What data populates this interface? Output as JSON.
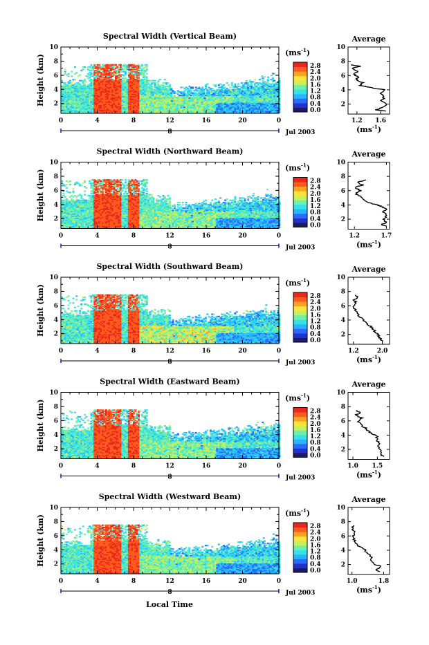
{
  "panels": [
    {
      "title": "Spectral Width (Vertical Beam)",
      "avg": {
        "xticks": [
          "1.2",
          "1.6"
        ],
        "xmin": 1.05,
        "xmax": 1.75,
        "profile": [
          [
            1.7,
            1.0
          ],
          [
            1.52,
            1.2
          ],
          [
            1.62,
            1.5
          ],
          [
            1.7,
            2.0
          ],
          [
            1.62,
            2.5
          ],
          [
            1.66,
            3.0
          ],
          [
            1.6,
            3.5
          ],
          [
            1.68,
            4.0
          ],
          [
            1.5,
            4.2
          ],
          [
            1.4,
            4.4
          ],
          [
            1.25,
            4.6
          ],
          [
            1.3,
            5.0
          ],
          [
            1.18,
            5.4
          ],
          [
            1.22,
            5.8
          ],
          [
            1.15,
            6.2
          ],
          [
            1.22,
            6.6
          ],
          [
            1.12,
            7.0
          ],
          [
            1.25,
            7.3
          ],
          [
            1.1,
            7.5
          ]
        ]
      }
    },
    {
      "title": "Spectral Width (Northward Beam)",
      "avg": {
        "xticks": [
          "1.2",
          "1.7"
        ],
        "xmin": 1.1,
        "xmax": 1.75,
        "profile": [
          [
            1.72,
            1.0
          ],
          [
            1.62,
            1.2
          ],
          [
            1.7,
            1.6
          ],
          [
            1.64,
            2.0
          ],
          [
            1.72,
            2.5
          ],
          [
            1.66,
            3.0
          ],
          [
            1.7,
            3.5
          ],
          [
            1.62,
            3.8
          ],
          [
            1.55,
            4.0
          ],
          [
            1.42,
            4.3
          ],
          [
            1.35,
            4.7
          ],
          [
            1.3,
            5.2
          ],
          [
            1.22,
            5.6
          ],
          [
            1.3,
            6.0
          ],
          [
            1.2,
            6.4
          ],
          [
            1.33,
            6.8
          ],
          [
            1.25,
            7.2
          ],
          [
            1.38,
            7.5
          ]
        ]
      }
    },
    {
      "title": "Spectral Width (Southward Beam)",
      "avg": {
        "xticks": [
          "1.2",
          "2.0"
        ],
        "xmin": 1.05,
        "xmax": 2.2,
        "profile": [
          [
            2.0,
            1.0
          ],
          [
            1.95,
            1.3
          ],
          [
            1.9,
            1.7
          ],
          [
            1.85,
            2.1
          ],
          [
            1.78,
            2.5
          ],
          [
            1.7,
            3.0
          ],
          [
            1.6,
            3.4
          ],
          [
            1.5,
            3.8
          ],
          [
            1.42,
            4.2
          ],
          [
            1.35,
            4.6
          ],
          [
            1.3,
            5.0
          ],
          [
            1.25,
            5.5
          ],
          [
            1.2,
            6.0
          ],
          [
            1.28,
            6.4
          ],
          [
            1.22,
            6.8
          ],
          [
            1.3,
            7.2
          ],
          [
            1.25,
            7.5
          ]
        ]
      }
    },
    {
      "title": "Spectral Width (Eastward Beam)",
      "avg": {
        "xticks": [
          "1.0",
          "1.5"
        ],
        "xmin": 0.9,
        "xmax": 1.75,
        "profile": [
          [
            1.62,
            1.0
          ],
          [
            1.55,
            1.3
          ],
          [
            1.58,
            1.8
          ],
          [
            1.52,
            2.3
          ],
          [
            1.55,
            2.8
          ],
          [
            1.48,
            3.3
          ],
          [
            1.5,
            3.8
          ],
          [
            1.4,
            4.2
          ],
          [
            1.3,
            4.6
          ],
          [
            1.25,
            5.0
          ],
          [
            1.15,
            5.5
          ],
          [
            1.1,
            6.0
          ],
          [
            1.18,
            6.4
          ],
          [
            1.05,
            6.8
          ],
          [
            1.15,
            7.1
          ],
          [
            1.08,
            7.5
          ]
        ]
      }
    },
    {
      "title": "Spectral Width (Westward Beam)",
      "avg": {
        "xticks": [
          "1.0",
          "1.8"
        ],
        "xmin": 0.9,
        "xmax": 1.95,
        "profile": [
          [
            1.7,
            1.0
          ],
          [
            1.6,
            1.3
          ],
          [
            1.75,
            1.7
          ],
          [
            1.55,
            2.1
          ],
          [
            1.45,
            2.6
          ],
          [
            1.5,
            3.0
          ],
          [
            1.42,
            3.4
          ],
          [
            1.35,
            3.8
          ],
          [
            1.3,
            4.2
          ],
          [
            1.15,
            4.6
          ],
          [
            1.1,
            5.0
          ],
          [
            1.05,
            5.5
          ],
          [
            1.02,
            6.0
          ],
          [
            1.08,
            6.5
          ],
          [
            1.0,
            7.0
          ],
          [
            1.05,
            7.5
          ]
        ]
      }
    }
  ],
  "main_xticks": [
    "0",
    "4",
    "8",
    "12",
    "16",
    "20",
    "0"
  ],
  "yticks": [
    "2",
    "4",
    "6",
    "8",
    "10"
  ],
  "ylabel": "Height (km)",
  "colorbar_unit": "(ms",
  "colorbar_unit_exp": "-1",
  "colorbar_ticks": [
    "0.0",
    "0.4",
    "0.8",
    "1.2",
    "1.6",
    "2.0",
    "2.4",
    "2.8"
  ],
  "colorbar_colors": [
    "#1a1a66",
    "#2233cc",
    "#2a6bff",
    "#28b4ff",
    "#36e2e6",
    "#6ef0a8",
    "#c8f05a",
    "#ffe23a",
    "#ffa020",
    "#ff5a1e",
    "#e8281c"
  ],
  "average_title": "Average",
  "avg_xlabel": "(ms",
  "avg_xlabel_exp": "-1",
  "date_label": "Jul 2003",
  "date_marker": "8",
  "xlabel": "Local Time",
  "chart_data": [
    {
      "type": "heatmap",
      "title": "Spectral Width (Vertical Beam)",
      "xlabel": "",
      "ylabel": "Height (km)",
      "xlim": [
        0,
        24
      ],
      "ylim": [
        0.5,
        10
      ],
      "colorbar_range": [
        0.0,
        2.8
      ],
      "colorbar_label": "(ms-1)"
    },
    {
      "type": "line",
      "title": "Average",
      "xlabel": "(ms-1)",
      "ylim": [
        0.5,
        10
      ]
    },
    {
      "type": "heatmap",
      "title": "Spectral Width (Northward Beam)",
      "ylabel": "Height (km)",
      "xlim": [
        0,
        24
      ],
      "ylim": [
        0.5,
        10
      ],
      "colorbar_range": [
        0.0,
        2.8
      ]
    },
    {
      "type": "line",
      "title": "Average",
      "xlabel": "(ms-1)",
      "ylim": [
        0.5,
        10
      ]
    },
    {
      "type": "heatmap",
      "title": "Spectral Width (Southward Beam)",
      "ylabel": "Height (km)",
      "xlim": [
        0,
        24
      ],
      "ylim": [
        0.5,
        10
      ],
      "colorbar_range": [
        0.0,
        2.8
      ]
    },
    {
      "type": "line",
      "title": "Average",
      "xlabel": "(ms-1)",
      "ylim": [
        0.5,
        10
      ]
    },
    {
      "type": "heatmap",
      "title": "Spectral Width (Eastward Beam)",
      "ylabel": "Height (km)",
      "xlim": [
        0,
        24
      ],
      "ylim": [
        0.5,
        10
      ],
      "colorbar_range": [
        0.0,
        2.8
      ]
    },
    {
      "type": "line",
      "title": "Average",
      "xlabel": "(ms-1)",
      "ylim": [
        0.5,
        10
      ]
    },
    {
      "type": "heatmap",
      "title": "Spectral Width (Westward Beam)",
      "xlabel": "Local Time",
      "ylabel": "Height (km)",
      "xlim": [
        0,
        24
      ],
      "ylim": [
        0.5,
        10
      ],
      "colorbar_range": [
        0.0,
        2.8
      ]
    },
    {
      "type": "line",
      "title": "Average",
      "xlabel": "(ms-1)",
      "ylim": [
        0.5,
        10
      ]
    }
  ]
}
